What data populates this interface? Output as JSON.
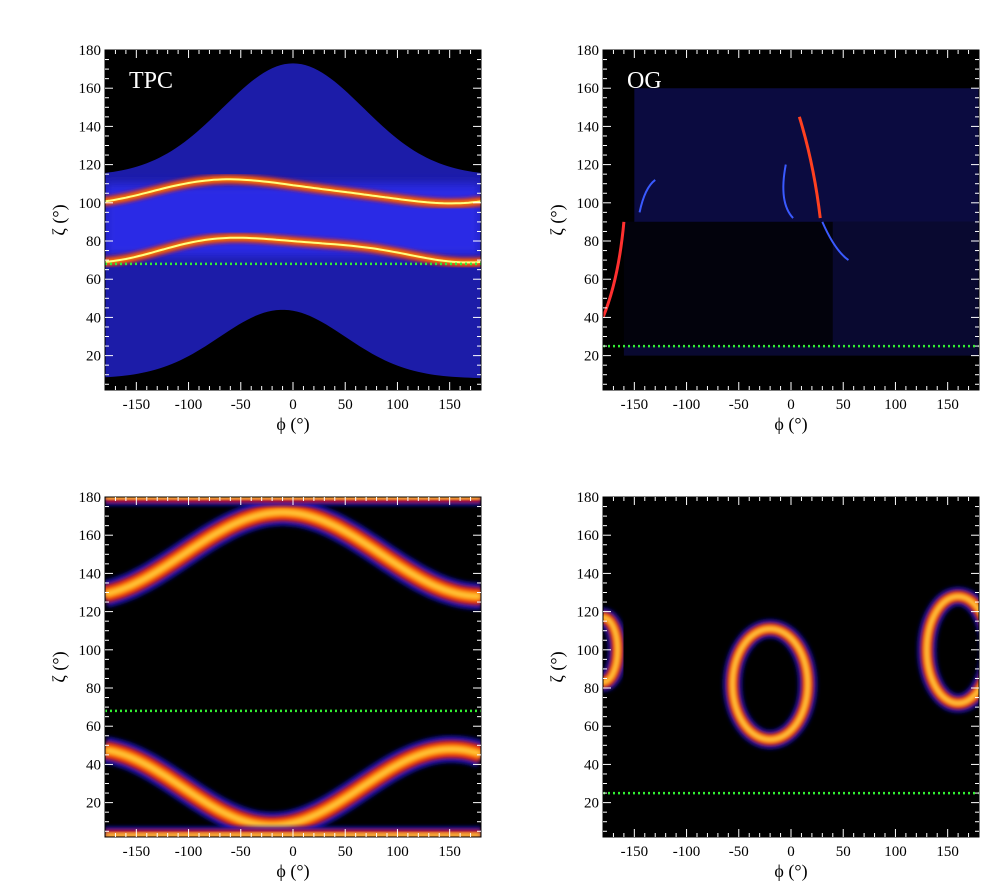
{
  "chart_data": [
    {
      "type": "heatmap",
      "label": "TPC",
      "xlabel": "ϕ (°)",
      "ylabel": "ζ (°)",
      "xlim": [
        -180,
        180
      ],
      "ylim": [
        2,
        180
      ],
      "xticks": [
        -150,
        -100,
        -50,
        0,
        50,
        100,
        150
      ],
      "yticks": [
        20,
        40,
        60,
        80,
        100,
        120,
        140,
        160,
        180
      ],
      "observer_line_zeta": 68,
      "colors": {
        "line": "#33ee33"
      }
    },
    {
      "type": "heatmap",
      "label": "OG",
      "xlabel": "ϕ (°)",
      "ylabel": "ζ (°)",
      "xlim": [
        -180,
        180
      ],
      "ylim": [
        2,
        180
      ],
      "xticks": [
        -150,
        -100,
        -50,
        0,
        50,
        100,
        150
      ],
      "yticks": [
        20,
        40,
        60,
        80,
        100,
        120,
        140,
        160,
        180
      ],
      "observer_line_zeta": 25,
      "colors": {
        "line": "#33ee33"
      }
    },
    {
      "type": "heatmap",
      "label": "",
      "xlabel": "ϕ (°)",
      "ylabel": "ζ (°)",
      "xlim": [
        -180,
        180
      ],
      "ylim": [
        2,
        180
      ],
      "xticks": [
        -150,
        -100,
        -50,
        0,
        50,
        100,
        150
      ],
      "yticks": [
        20,
        40,
        60,
        80,
        100,
        120,
        140,
        160,
        180
      ],
      "observer_line_zeta": 68,
      "colors": {
        "line": "#33ee33"
      }
    },
    {
      "type": "heatmap",
      "label": "",
      "xlabel": "ϕ (°)",
      "ylabel": "ζ (°)",
      "xlim": [
        -180,
        180
      ],
      "ylim": [
        2,
        180
      ],
      "xticks": [
        -150,
        -100,
        -50,
        0,
        50,
        100,
        150
      ],
      "yticks": [
        20,
        40,
        60,
        80,
        100,
        120,
        140,
        160,
        180
      ],
      "observer_line_zeta": 25,
      "colors": {
        "line": "#33ee33"
      }
    }
  ]
}
